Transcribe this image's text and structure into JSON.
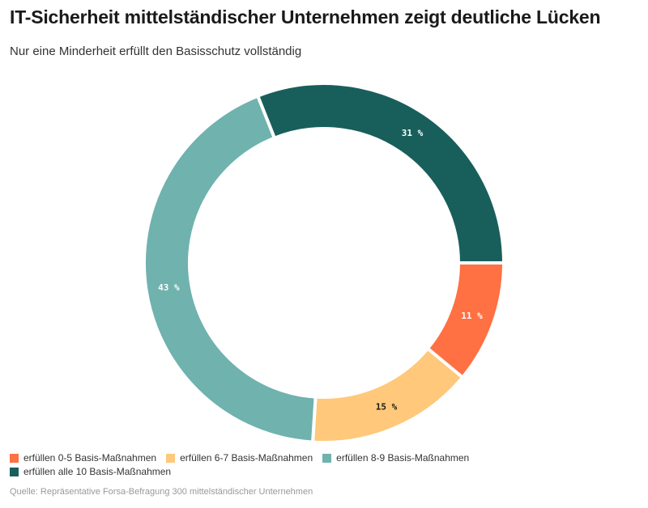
{
  "header": {
    "title": "IT-Sicherheit mittelständischer Unternehmen zeigt deutliche Lücken",
    "subtitle": "Nur eine Minderheit erfüllt den Basisschutz vollständig"
  },
  "source": "Quelle: Repräsentative Forsa-Befragung 300 mittelständischer Unternehmen",
  "chart_data": {
    "type": "pie",
    "variant": "donut",
    "categories": [
      "erfüllen 0-5 Basis-Maßnahmen",
      "erfüllen 6-7 Basis-Maßnahmen",
      "erfüllen 8-9 Basis-Maßnahmen",
      "erfüllen alle 10 Basis-Maßnahmen"
    ],
    "values": [
      11,
      15,
      43,
      31
    ],
    "labels": [
      "11 %",
      "15 %",
      "43 %",
      "31 %"
    ],
    "colors": [
      "#ff7043",
      "#ffc87a",
      "#6fb2ae",
      "#185f5c"
    ],
    "label_colors": [
      "#ffffff",
      "#1a1a1a",
      "#ffffff",
      "#ffffff"
    ],
    "legend_position": "bottom-left"
  }
}
